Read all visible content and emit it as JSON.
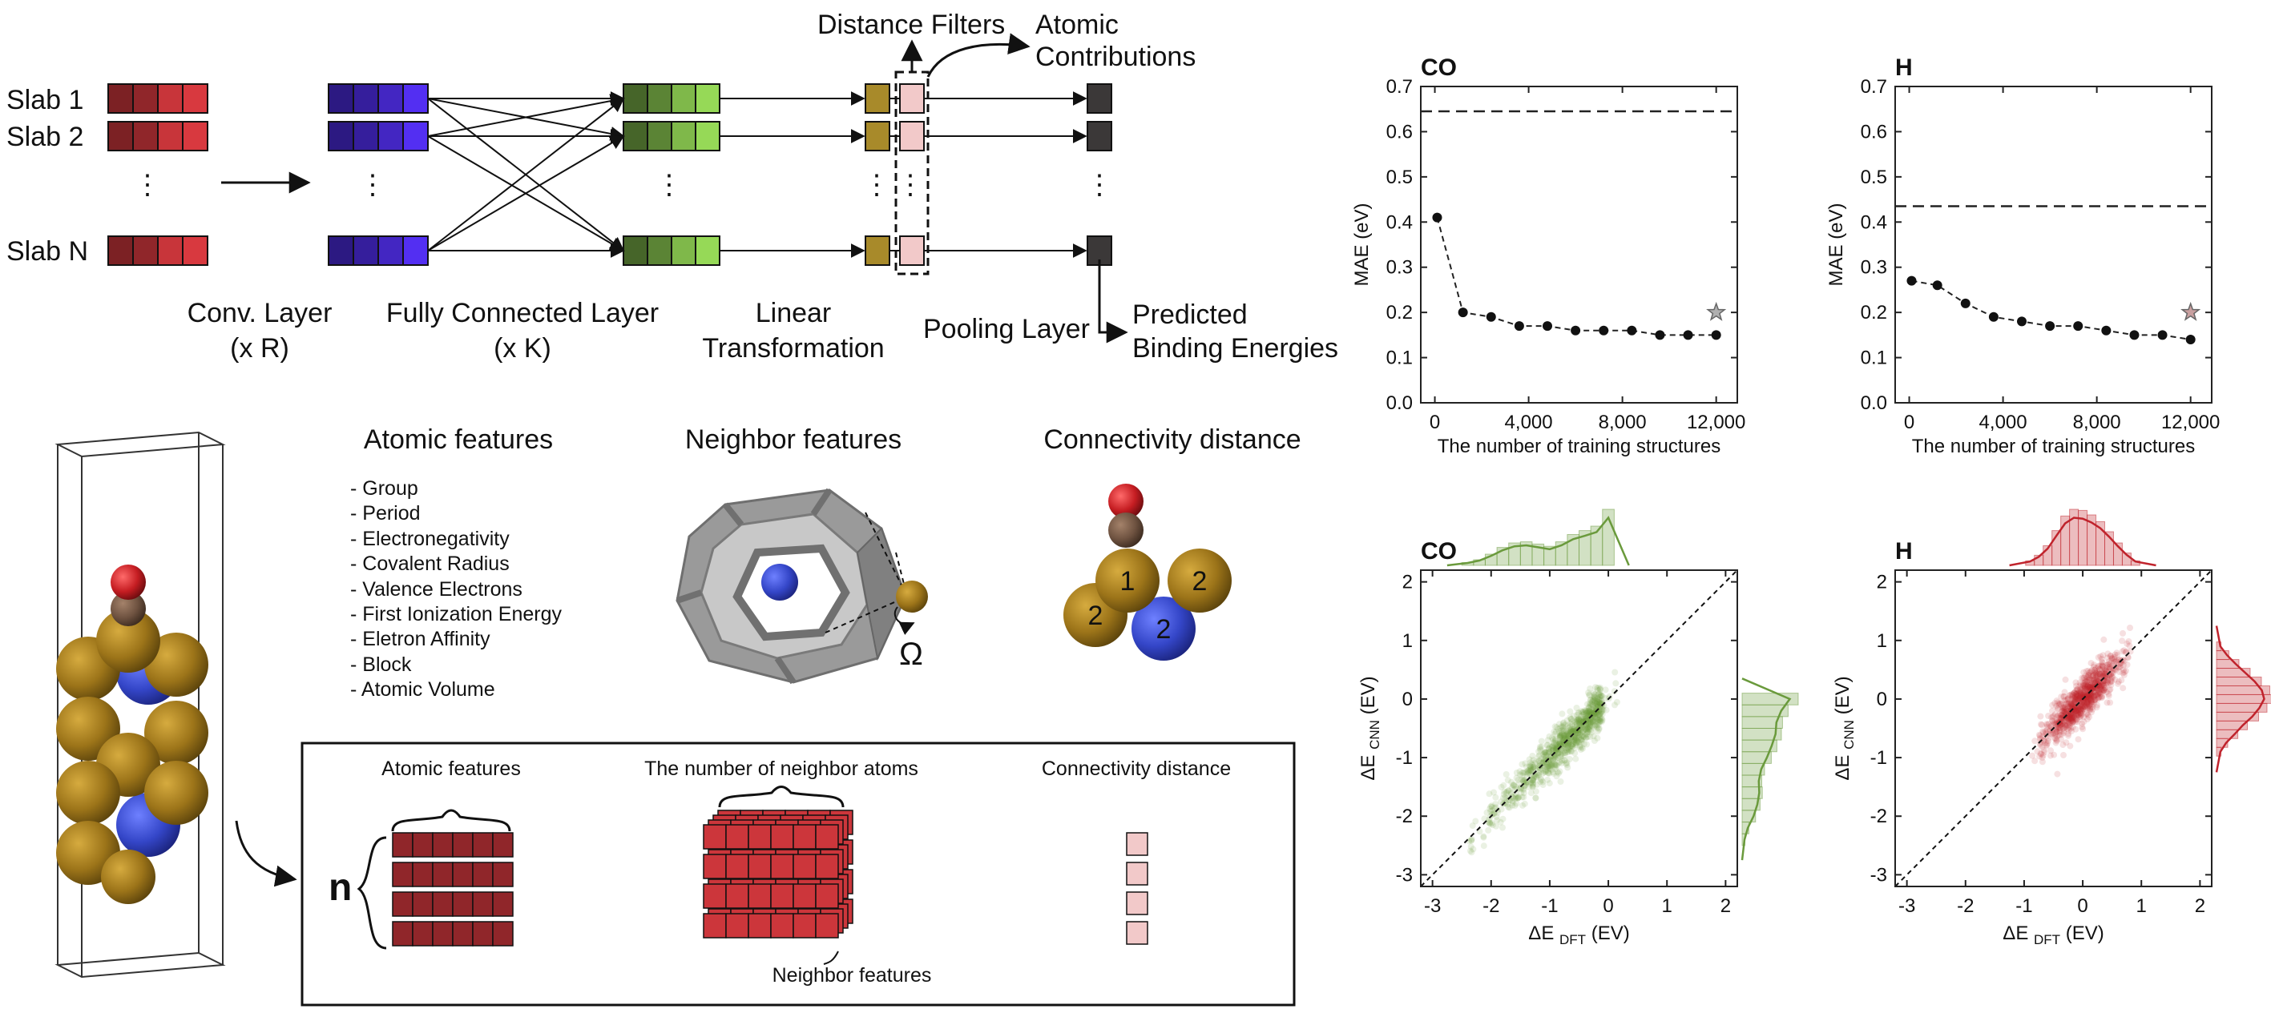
{
  "cnn": {
    "slab_labels": [
      "Slab 1",
      "Slab 2",
      "Slab N"
    ],
    "vdots": "⋮",
    "layer_labels": {
      "conv1": "Conv. Layer",
      "conv2": "(x R)",
      "fc1": "Fully Connected Layer",
      "fc2": "(x K)",
      "lin1": "Linear",
      "lin2": "Transformation",
      "pool": "Pooling Layer"
    },
    "distance_filters": "Distance Filters",
    "atomic_contrib_1": "Atomic",
    "atomic_contrib_2": "Contributions",
    "predicted_1": "Predicted",
    "predicted_2": "Binding Energies"
  },
  "features": {
    "atomic_title": "Atomic features",
    "neighbor_title": "Neighbor features",
    "connectivity_title": "Connectivity distance",
    "atomic_list": [
      "- Group",
      "- Period",
      "- Electronegativity",
      "- Covalent Radius",
      "- Valence Electrons",
      "- First Ionization Energy",
      "- Eletron Affinity",
      "- Block",
      "- Atomic Volume"
    ],
    "omega": "Ω",
    "atom_labels": [
      "1",
      "2",
      "2",
      "2"
    ]
  },
  "input_box": {
    "atomic_features": "Atomic features",
    "neighbor_atoms": "The number of neighbor atoms",
    "connectivity": "Connectivity distance",
    "neighbor_features": "Neighbor features",
    "n_label": "n"
  },
  "colors": {
    "slab_red": "#c8353a",
    "conv_blue": "#4a2ad8",
    "fc_green": "#7fb84a",
    "linear_olive": "#a88a2a",
    "filter_pink": "#f2c9c9",
    "pool_gray": "#3b3838",
    "co_green": "#6a9a3c",
    "h_red": "#c0232c",
    "gold_atom": "#a07a1c",
    "blue_atom": "#3f4fd0"
  },
  "chart_data": [
    {
      "type": "line",
      "title": "CO",
      "xlabel": "The number of training structures",
      "ylabel": "MAE (eV)",
      "xlim": [
        -600,
        12900
      ],
      "ylim": [
        0.0,
        0.7
      ],
      "xticks": [
        0,
        4000,
        8000,
        12000
      ],
      "xtick_labels": [
        "0",
        "4,000",
        "8,000",
        "12,000"
      ],
      "yticks": [
        0.0,
        0.1,
        0.2,
        0.3,
        0.4,
        0.5,
        0.6,
        0.7
      ],
      "ytick_labels": [
        "0.0",
        "0.1",
        "0.2",
        "0.3",
        "0.4",
        "0.5",
        "0.6",
        "0.7"
      ],
      "dashed_hline": 0.645,
      "star": {
        "x": 12000,
        "y": 0.2
      },
      "series": [
        {
          "x": [
            100,
            1200,
            2400,
            3600,
            4800,
            6000,
            7200,
            8400,
            9600,
            10800,
            12000
          ],
          "values": [
            0.41,
            0.2,
            0.19,
            0.17,
            0.17,
            0.16,
            0.16,
            0.16,
            0.15,
            0.15,
            0.15
          ]
        }
      ]
    },
    {
      "type": "line",
      "title": "H",
      "xlabel": "The number of training structures",
      "ylabel": "MAE (eV)",
      "xlim": [
        -600,
        12900
      ],
      "ylim": [
        0.0,
        0.7
      ],
      "xticks": [
        0,
        4000,
        8000,
        12000
      ],
      "xtick_labels": [
        "0",
        "4,000",
        "8,000",
        "12,000"
      ],
      "yticks": [
        0.0,
        0.1,
        0.2,
        0.3,
        0.4,
        0.5,
        0.6,
        0.7
      ],
      "ytick_labels": [
        "0.0",
        "0.1",
        "0.2",
        "0.3",
        "0.4",
        "0.5",
        "0.6",
        "0.7"
      ],
      "dashed_hline": 0.435,
      "star": {
        "x": 12000,
        "y": 0.2
      },
      "series": [
        {
          "x": [
            100,
            1200,
            2400,
            3600,
            4800,
            6000,
            7200,
            8400,
            9600,
            10800,
            12000
          ],
          "values": [
            0.27,
            0.26,
            0.22,
            0.19,
            0.18,
            0.17,
            0.17,
            0.16,
            0.15,
            0.15,
            0.14
          ]
        }
      ]
    },
    {
      "type": "scatter",
      "title": "CO",
      "xlabel": "ΔE_DFT (EV)",
      "ylabel": "ΔE_CNN (EV)",
      "xlim": [
        -3.2,
        2.2
      ],
      "ylim": [
        -3.2,
        2.2
      ],
      "xticks": [
        -3,
        -2,
        -1,
        0,
        1,
        2
      ],
      "yticks": [
        -3,
        -2,
        -1,
        0,
        1,
        2
      ],
      "tick_labels": [
        "-3",
        "-2",
        "-1",
        "0",
        "1",
        "2"
      ],
      "parity_line": true,
      "point_cloud": {
        "x_range": [
          -2.4,
          0.15
        ],
        "center": [
          -0.6,
          -0.6
        ],
        "spread": 0.18
      },
      "marginal_top": {
        "bins": [
          -2.4,
          -2.2,
          -2.0,
          -1.8,
          -1.6,
          -1.4,
          -1.2,
          -1.0,
          -0.8,
          -0.6,
          -0.4,
          -0.2,
          0.0
        ],
        "counts": [
          0.05,
          0.1,
          0.2,
          0.32,
          0.4,
          0.42,
          0.38,
          0.34,
          0.42,
          0.55,
          0.62,
          0.7,
          1.0
        ]
      },
      "marginal_right": {
        "bins": [
          -2.4,
          -2.2,
          -2.0,
          -1.8,
          -1.6,
          -1.4,
          -1.2,
          -1.0,
          -0.8,
          -0.6,
          -0.4,
          -0.2,
          0.0
        ],
        "counts": [
          0.05,
          0.12,
          0.24,
          0.32,
          0.36,
          0.35,
          0.4,
          0.52,
          0.62,
          0.7,
          0.72,
          0.82,
          1.0
        ]
      }
    },
    {
      "type": "scatter",
      "title": "H",
      "xlabel": "ΔE_DFT (EV)",
      "ylabel": "ΔE_CNN (EV)",
      "xlim": [
        -3.2,
        2.2
      ],
      "ylim": [
        -3.2,
        2.2
      ],
      "xticks": [
        -3,
        -2,
        -1,
        0,
        1,
        2
      ],
      "yticks": [
        -3,
        -2,
        -1,
        0,
        1,
        2
      ],
      "tick_labels": [
        "-3",
        "-2",
        "-1",
        "0",
        "1",
        "2"
      ],
      "parity_line": true,
      "point_cloud": {
        "x_range": [
          -0.9,
          0.9
        ],
        "center": [
          0.0,
          -0.1
        ],
        "spread": 0.18
      },
      "marginal_top": {
        "bins": [
          -0.9,
          -0.75,
          -0.6,
          -0.45,
          -0.3,
          -0.15,
          0.0,
          0.15,
          0.3,
          0.45,
          0.6,
          0.75,
          0.9
        ],
        "counts": [
          0.08,
          0.18,
          0.35,
          0.62,
          0.88,
          1.0,
          0.98,
          0.9,
          0.78,
          0.6,
          0.4,
          0.22,
          0.08
        ]
      },
      "marginal_right": {
        "bins": [
          -0.9,
          -0.75,
          -0.6,
          -0.45,
          -0.3,
          -0.15,
          0.0,
          0.15,
          0.3,
          0.45,
          0.6,
          0.75,
          0.9
        ],
        "counts": [
          0.08,
          0.2,
          0.38,
          0.55,
          0.75,
          0.9,
          1.0,
          0.95,
          0.8,
          0.6,
          0.4,
          0.22,
          0.08
        ]
      }
    }
  ]
}
